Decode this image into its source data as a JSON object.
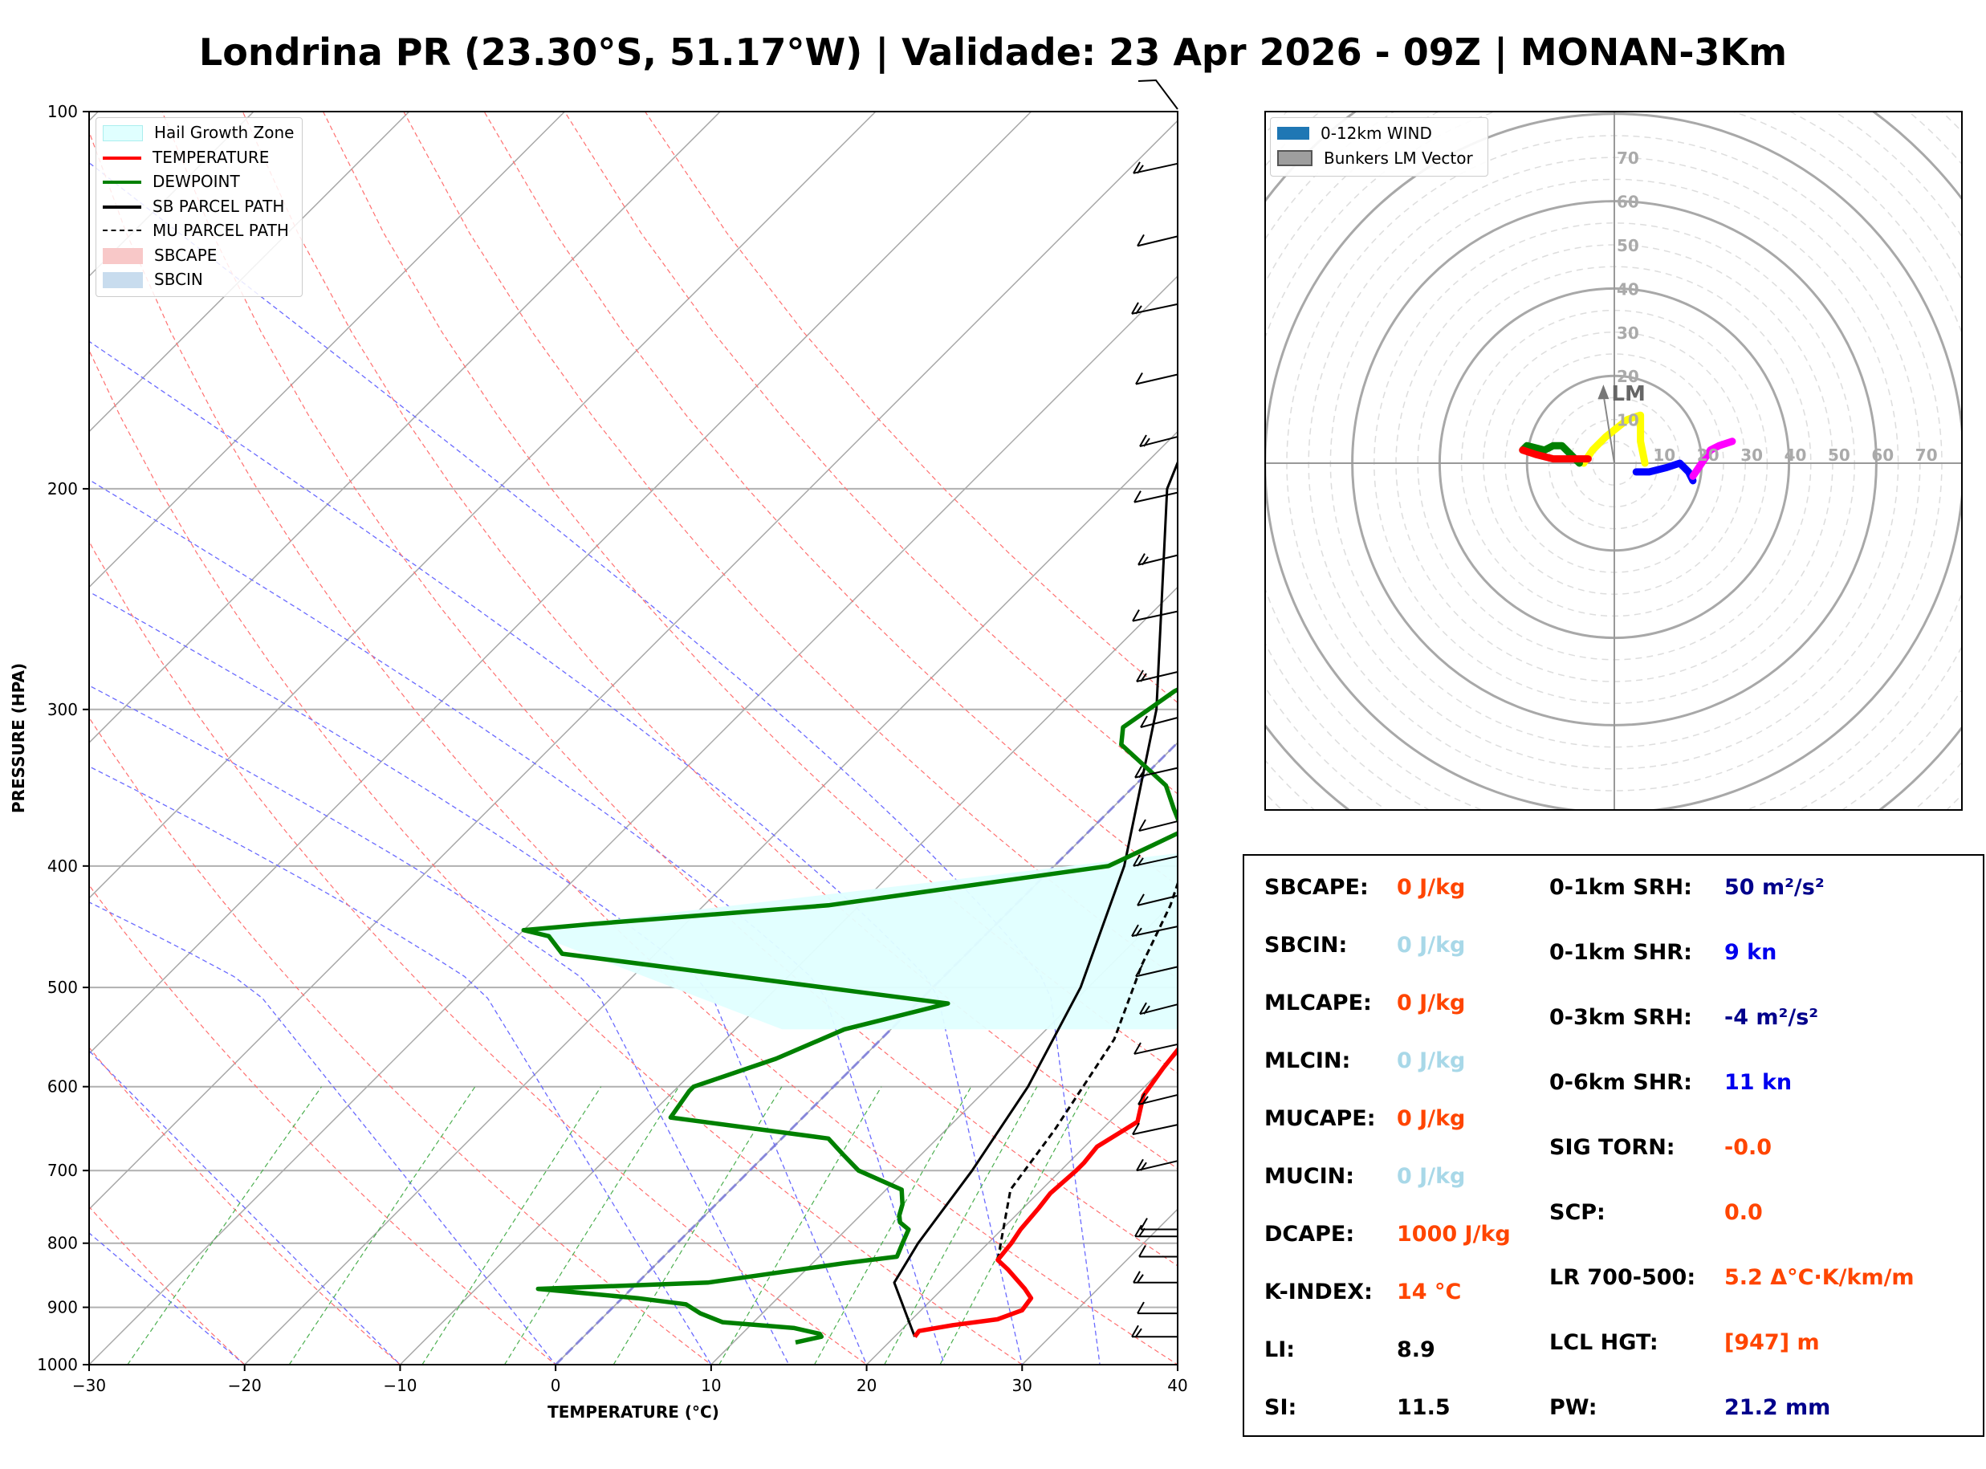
{
  "title": "Londrina PR (23.30°S, 51.17°W) | Validade: 23 Apr 2026 - 09Z | MONAN-3Km",
  "legend": {
    "items": [
      {
        "label": "Hail Growth Zone",
        "kind": "fill",
        "color": "#e0ffff",
        "edge": "#aaeeee"
      },
      {
        "label": "TEMPERATURE",
        "kind": "line",
        "color": "#ff0000",
        "dash": "solid"
      },
      {
        "label": "DEWPOINT",
        "kind": "line",
        "color": "#008000",
        "dash": "solid"
      },
      {
        "label": "SB PARCEL PATH",
        "kind": "line",
        "color": "#000000",
        "dash": "solid"
      },
      {
        "label": "MU PARCEL PATH",
        "kind": "line",
        "color": "#000000",
        "dash": "dashed"
      },
      {
        "label": "SBCAPE",
        "kind": "fill",
        "color": "#f8c8c8",
        "edge": "#f8c8c8"
      },
      {
        "label": "SBCIN",
        "kind": "fill",
        "color": "#c8dcee",
        "edge": "#c8dcee"
      }
    ]
  },
  "hodo_legend": {
    "items": [
      {
        "label": "0-12km WIND",
        "color": "#1f77b4"
      },
      {
        "label": "Bunkers LM Vector",
        "color": "#999999"
      }
    ]
  },
  "chart_data": [
    {
      "type": "line",
      "subtype": "skew-t log-p",
      "xlabel": "TEMPERATURE (°C)",
      "ylabel": "PRESSURE (HPA)",
      "xlim": [
        -30,
        40
      ],
      "ylim": [
        1000,
        100
      ],
      "y_scale": "log",
      "x_ticks": [
        -30,
        -20,
        -10,
        0,
        10,
        20,
        30,
        40
      ],
      "x_tick_labels": [
        "−30",
        "−20",
        "−10",
        "0",
        "10",
        "20",
        "30",
        "40"
      ],
      "y_ticks": [
        100,
        200,
        300,
        400,
        500,
        600,
        700,
        800,
        900,
        1000
      ],
      "grid": true,
      "legend_position": "top-left",
      "series": [
        {
          "name": "TEMPERATURE",
          "color": "#ff0000",
          "points": [
            [
              21.3,
              950
            ],
            [
              21.2,
              940
            ],
            [
              23,
              930
            ],
            [
              25.5,
              920
            ],
            [
              26.5,
              905
            ],
            [
              26.3,
              885
            ],
            [
              25.3,
              870
            ],
            [
              23,
              840
            ],
            [
              21.7,
              825
            ],
            [
              21.5,
              800
            ],
            [
              21.2,
              780
            ],
            [
              21,
              750
            ],
            [
              20.8,
              730
            ],
            [
              21,
              700
            ],
            [
              21,
              690
            ],
            [
              20.8,
              670
            ],
            [
              21.8,
              640
            ],
            [
              20.5,
              610
            ],
            [
              20,
              580
            ],
            [
              19.5,
              540
            ],
            [
              18.5,
              515
            ],
            [
              18.5,
              490
            ],
            [
              18,
              460
            ],
            [
              17,
              430
            ],
            [
              15.3,
              405
            ],
            [
              14,
              380
            ],
            [
              13.5,
              365
            ],
            [
              12.8,
              340
            ],
            [
              12,
              320
            ],
            [
              10.5,
              300
            ],
            [
              9,
              280
            ],
            [
              7.5,
              260
            ],
            [
              5.5,
              240
            ],
            [
              3.5,
              220
            ],
            [
              2,
              200
            ],
            [
              1,
              180
            ],
            [
              0.3,
              165
            ],
            [
              -0.2,
              150
            ],
            [
              -0.5,
              137
            ],
            [
              -0.2,
              125
            ],
            [
              0.8,
              112
            ],
            [
              2.3,
              103
            ],
            [
              3.5,
              100
            ]
          ]
        },
        {
          "name": "DEWPOINT",
          "color": "#008000",
          "points": [
            [
              14,
              960
            ],
            [
              15.3,
              950
            ],
            [
              15,
              945
            ],
            [
              13,
              935
            ],
            [
              8,
              925
            ],
            [
              6,
              910
            ],
            [
              4.5,
              895
            ],
            [
              1,
              885
            ],
            [
              -6,
              870
            ],
            [
              4.5,
              860
            ],
            [
              12,
              830
            ],
            [
              15,
              820
            ],
            [
              14.5,
              800
            ],
            [
              14,
              780
            ],
            [
              13,
              770
            ],
            [
              12.5,
              760
            ],
            [
              12,
              745
            ],
            [
              11,
              725
            ],
            [
              7,
              700
            ],
            [
              5,
              680
            ],
            [
              3,
              660
            ],
            [
              -8.5,
              635
            ],
            [
              -9,
              605
            ],
            [
              -9,
              600
            ],
            [
              -5.5,
              570
            ],
            [
              -3,
              540
            ],
            [
              2,
              515
            ],
            [
              -4,
              505
            ],
            [
              -26,
              470
            ],
            [
              -28,
              455
            ],
            [
              -30,
              450
            ],
            [
              -26,
              445
            ],
            [
              -12,
              430
            ],
            [
              3.5,
              400
            ],
            [
              5,
              385
            ],
            [
              6,
              375
            ],
            [
              4,
              360
            ],
            [
              2,
              345
            ],
            [
              -3.5,
              320
            ],
            [
              -4.5,
              310
            ],
            [
              -4,
              300
            ],
            [
              -3.5,
              290
            ],
            [
              -1.5,
              275
            ],
            [
              -3.5,
              260
            ],
            [
              -3,
              245
            ],
            [
              -2.5,
              230
            ],
            [
              -4.5,
              210
            ],
            [
              -5,
              197
            ],
            [
              -7,
              186
            ],
            [
              -11,
              170
            ],
            [
              -13.5,
              158
            ],
            [
              -14.5,
              150
            ],
            [
              -13.5,
              143
            ],
            [
              -12,
              134
            ],
            [
              -9,
              125
            ],
            [
              -6,
              115
            ],
            [
              -5,
              109
            ],
            [
              -4.5,
              104
            ],
            [
              -4,
              100
            ]
          ]
        },
        {
          "name": "SB PARCEL PATH",
          "color": "#000000",
          "points": [
            [
              21.3,
              950
            ],
            [
              16.5,
              860
            ],
            [
              15.5,
              800
            ],
            [
              14.3,
              700
            ],
            [
              12.5,
              600
            ],
            [
              9.5,
              500
            ],
            [
              4.5,
              400
            ],
            [
              -3.5,
              300
            ],
            [
              -17,
              200
            ],
            [
              -23,
              150
            ],
            [
              -30,
              100
            ]
          ]
        },
        {
          "name": "MU PARCEL PATH",
          "color": "#000000",
          "dash": "dashed",
          "points": [
            [
              21.7,
              825
            ],
            [
              18,
              725
            ],
            [
              17,
              650
            ],
            [
              15,
              550
            ],
            [
              12,
              480
            ],
            [
              10,
              430
            ],
            [
              6.5,
              370
            ],
            [
              0,
              300
            ],
            [
              -12.5,
              200
            ],
            [
              -21,
              150
            ],
            [
              -30,
              100
            ]
          ]
        },
        {
          "name": "Hail Growth Zone",
          "color": "#e0ffff",
          "points": [
            [
              -30,
              450
            ],
            [
              14.5,
              380
            ],
            [
              19.5,
              540
            ],
            [
              -7,
              540
            ]
          ]
        }
      ],
      "wind_barbs": {
        "pressures": [
          950,
          910,
          860,
          820,
          790,
          780,
          700,
          655,
          620,
          565,
          525,
          490,
          455,
          430,
          400,
          375,
          340,
          310,
          285,
          255,
          230,
          205,
          185,
          165,
          145,
          128,
          112
        ]
      }
    },
    {
      "type": "scatter",
      "subtype": "hodograph",
      "rings": [
        10,
        20,
        30,
        40,
        50,
        60,
        70
      ],
      "ring_labels_y": [
        "10",
        "20",
        "30",
        "40",
        "50",
        "60",
        "70"
      ],
      "ring_labels_x": [
        "10",
        "20",
        "30",
        "40",
        "50",
        "60",
        "70"
      ],
      "annotation": "LM",
      "bunkers_lm": [
        -2.5,
        18
      ],
      "segments": [
        {
          "color": "#0000ff",
          "points": [
            [
              5,
              -2
            ],
            [
              8,
              -2
            ],
            [
              12,
              -1
            ],
            [
              15,
              0
            ],
            [
              17,
              -2
            ],
            [
              18,
              -4
            ]
          ]
        },
        {
          "color": "#ff00ff",
          "points": [
            [
              18,
              -3
            ],
            [
              20,
              0
            ],
            [
              22,
              3
            ],
            [
              24,
              4
            ],
            [
              27,
              5
            ]
          ]
        },
        {
          "color": "#ffff00",
          "points": [
            [
              7,
              0
            ],
            [
              6,
              5
            ],
            [
              6,
              11
            ],
            [
              3,
              10
            ],
            [
              -2,
              6
            ],
            [
              -5,
              3
            ],
            [
              -7,
              0
            ]
          ]
        },
        {
          "color": "#008000",
          "points": [
            [
              -8,
              0
            ],
            [
              -10,
              2
            ],
            [
              -12,
              4
            ],
            [
              -14,
              4
            ],
            [
              -16,
              3
            ],
            [
              -20,
              4
            ],
            [
              -21,
              3
            ]
          ]
        },
        {
          "color": "#ff0000",
          "points": [
            [
              -6,
              1
            ],
            [
              -10,
              1
            ],
            [
              -14,
              1
            ],
            [
              -18,
              2
            ],
            [
              -21,
              3
            ]
          ]
        }
      ]
    }
  ],
  "stats": {
    "left": [
      {
        "label": "SBCAPE:",
        "value": "0 J/kg",
        "color": "orange"
      },
      {
        "label": "SBCIN:",
        "value": "0 J/kg",
        "color": "lightblue"
      },
      {
        "label": "MLCAPE:",
        "value": "0 J/kg",
        "color": "orange"
      },
      {
        "label": "MLCIN:",
        "value": "0 J/kg",
        "color": "lightblue"
      },
      {
        "label": "MUCAPE:",
        "value": "0 J/kg",
        "color": "orange"
      },
      {
        "label": "MUCIN:",
        "value": "0 J/kg",
        "color": "lightblue"
      },
      {
        "label": "DCAPE:",
        "value": "1000 J/kg",
        "color": "orange"
      },
      {
        "label": "K-INDEX:",
        "value": "14 °C",
        "color": "orange"
      },
      {
        "label": "LI:",
        "value": "8.9",
        "color": "black"
      },
      {
        "label": "SI:",
        "value": "11.5",
        "color": "black"
      }
    ],
    "right": [
      {
        "label": "0-1km SRH:",
        "value": "50 m²/s²",
        "color": "navy"
      },
      {
        "label": "0-1km SHR:",
        "value": "9 kn",
        "color": "blue"
      },
      {
        "label": "0-3km SRH:",
        "value": "-4 m²/s²",
        "color": "navy"
      },
      {
        "label": "0-6km SHR:",
        "value": "11 kn",
        "color": "blue"
      },
      {
        "label": "SIG TORN:",
        "value": "-0.0",
        "color": "orange"
      },
      {
        "label": "SCP:",
        "value": "0.0",
        "color": "orange"
      },
      {
        "label": "LR 700-500:",
        "value": "5.2 Δ°C·K/km/m",
        "color": "orange"
      },
      {
        "label": "LCL HGT:",
        "value": "[947] m",
        "color": "orange"
      },
      {
        "label": "PW:",
        "value": "21.2 mm",
        "color": "navy"
      }
    ]
  }
}
